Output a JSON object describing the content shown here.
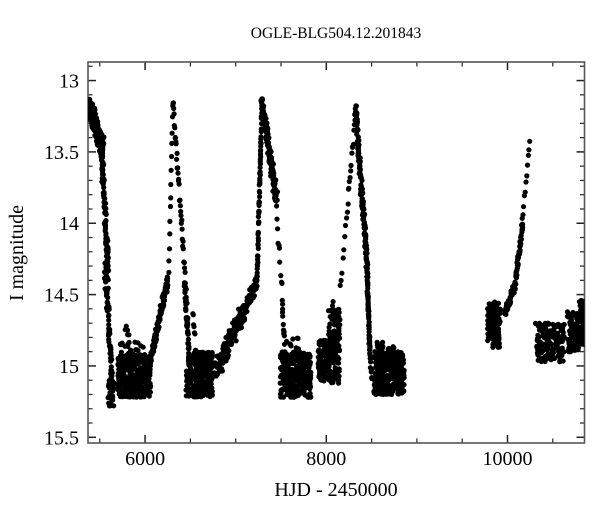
{
  "figure": {
    "title": "OGLE-BLG504.12.201843"
  },
  "chart_data": {
    "type": "scatter",
    "title": "OGLE-BLG504.12.201843",
    "xlabel": "HJD - 2450000",
    "ylabel": "I magnitude",
    "xlim": [
      5370,
      10850
    ],
    "ylim": [
      12.87,
      15.54
    ],
    "y_axis_inverted_magnitude": true,
    "x_major_ticks": [
      6000,
      8000,
      10000
    ],
    "x_minor_step": 500,
    "y_major_ticks": [
      13,
      13.5,
      14,
      14.5,
      15,
      15.5
    ],
    "y_minor_step": 0.1,
    "grid": false,
    "legend": null,
    "background": "#ffffff",
    "axis_color": "#555555",
    "tick_color": "#222222",
    "text_color": "#000000",
    "marker": {
      "shape": "circle",
      "radius_px": 2.6,
      "color": "#000000"
    },
    "seasonal_gap": [
      8860,
      9770
    ],
    "outburst_peaks": [
      {
        "hjd": 5400,
        "mag": 13.17
      },
      {
        "hjd": 6310,
        "mag": 13.14
      },
      {
        "hjd": 7290,
        "mag": 13.15
      },
      {
        "hjd": 8330,
        "mag": 13.2
      },
      {
        "hjd": 10240,
        "mag": 13.43,
        "note": "partial rise only"
      }
    ],
    "quiescence_mag_range": [
      14.9,
      15.22
    ],
    "segments": [
      {
        "name": "outburst1-plateau-decline",
        "type": "line",
        "t": [
          5382,
          5535
        ],
        "m": [
          13.18,
          13.48
        ],
        "n": 260,
        "jt": 14,
        "jm": 0.1
      },
      {
        "name": "outburst1-mid-decline",
        "type": "line",
        "t": [
          5520,
          5595
        ],
        "m": [
          13.48,
          14.35
        ],
        "n": 95,
        "jt": 10,
        "jm": 0.12
      },
      {
        "name": "outburst1-fast-decline",
        "type": "line",
        "t": [
          5560,
          5645
        ],
        "m": [
          14.3,
          15.2
        ],
        "n": 90,
        "jt": 12,
        "jm": 0.1
      },
      {
        "name": "outburst1-tail",
        "type": "box",
        "t": [
          5590,
          5655
        ],
        "m": [
          15.08,
          15.3
        ],
        "n": 25
      },
      {
        "name": "quiescence1",
        "type": "box",
        "t": [
          5700,
          6060
        ],
        "m": [
          14.92,
          15.22
        ],
        "n": 380
      },
      {
        "name": "quiescence1-upper-fringe",
        "type": "box",
        "t": [
          5720,
          5985
        ],
        "m": [
          14.82,
          14.95
        ],
        "n": 28
      },
      {
        "name": "quiescence1-outliers",
        "type": "box",
        "t": [
          5755,
          5825
        ],
        "m": [
          14.72,
          14.82
        ],
        "n": 5
      },
      {
        "name": "rise2-slow",
        "type": "line",
        "t": [
          6060,
          6250
        ],
        "m": [
          14.95,
          14.4
        ],
        "n": 140,
        "jt": 8,
        "jm": 0.06
      },
      {
        "name": "rise2-steep-sparse",
        "type": "line",
        "t": [
          6262,
          6306
        ],
        "m": [
          14.35,
          13.17
        ],
        "n": 14,
        "jt": 3,
        "jm": 0.04
      },
      {
        "name": "peak2-decline-dotted",
        "type": "line",
        "t": [
          6308,
          6440
        ],
        "m": [
          13.14,
          14.35
        ],
        "n": 34,
        "jt": 3,
        "jm": 0.05
      },
      {
        "name": "decline2-lower",
        "type": "line",
        "t": [
          6438,
          6500
        ],
        "m": [
          14.4,
          15.1
        ],
        "n": 70,
        "jt": 8,
        "jm": 0.1
      },
      {
        "name": "decline2-bottom",
        "type": "box",
        "t": [
          6448,
          6508
        ],
        "m": [
          15.0,
          15.22
        ],
        "n": 25
      },
      {
        "name": "quiescence2",
        "type": "box",
        "t": [
          6528,
          6745
        ],
        "m": [
          14.9,
          15.22
        ],
        "n": 280
      },
      {
        "name": "quiescence2-upper-left",
        "type": "line",
        "t": [
          6528,
          6558
        ],
        "m": [
          14.62,
          14.9
        ],
        "n": 8,
        "jt": 4,
        "jm": 0.05
      },
      {
        "name": "rise3-very-slow",
        "type": "line",
        "t": [
          6770,
          7090
        ],
        "m": [
          15.05,
          14.62
        ],
        "n": 115,
        "jt": 15,
        "jm": 0.1
      },
      {
        "name": "rise3-mid",
        "type": "line",
        "t": [
          7090,
          7232
        ],
        "m": [
          14.62,
          14.42
        ],
        "n": 60,
        "jt": 10,
        "jm": 0.07
      },
      {
        "name": "rise3-steep-dense",
        "type": "line",
        "t": [
          7235,
          7290
        ],
        "m": [
          14.4,
          13.16
        ],
        "n": 70,
        "jt": 4,
        "jm": 0.05
      },
      {
        "name": "peak3-decline-bulge",
        "type": "line",
        "t": [
          7292,
          7452
        ],
        "m": [
          13.15,
          13.85
        ],
        "n": 175,
        "jt": 18,
        "jm": 0.08
      },
      {
        "name": "decline3-sparse",
        "type": "line",
        "t": [
          7452,
          7520
        ],
        "m": [
          13.9,
          14.58
        ],
        "n": 12,
        "jt": 5,
        "jm": 0.06
      },
      {
        "name": "decline3-bottom",
        "type": "line",
        "t": [
          7515,
          7548
        ],
        "m": [
          14.6,
          14.95
        ],
        "n": 12,
        "jt": 4,
        "jm": 0.06
      },
      {
        "name": "quiescence3",
        "type": "box",
        "t": [
          7490,
          7830
        ],
        "m": [
          14.9,
          15.22
        ],
        "n": 320
      },
      {
        "name": "quiescence3-upper-fringe",
        "type": "box",
        "t": [
          7560,
          7705
        ],
        "m": [
          14.8,
          14.92
        ],
        "n": 14
      },
      {
        "name": "pre-outburst4-left",
        "type": "box",
        "t": [
          7910,
          8032
        ],
        "m": [
          14.82,
          15.12
        ],
        "n": 115
      },
      {
        "name": "pre-outburst4-right",
        "type": "box",
        "t": [
          8022,
          8150
        ],
        "m": [
          14.6,
          15.12
        ],
        "n": 135
      },
      {
        "name": "pre-outburst4-outlier",
        "type": "box",
        "t": [
          8060,
          8078
        ],
        "m": [
          14.53,
          14.58
        ],
        "n": 2
      },
      {
        "name": "rise4-sparse-lower",
        "type": "line",
        "t": [
          8155,
          8242
        ],
        "m": [
          14.45,
          13.85
        ],
        "n": 10,
        "jt": 4,
        "jm": 0.05
      },
      {
        "name": "rise4-sparse-upper",
        "type": "line",
        "t": [
          8245,
          8322
        ],
        "m": [
          13.8,
          13.24
        ],
        "n": 14,
        "jt": 4,
        "jm": 0.05
      },
      {
        "name": "peak4-decline-dense",
        "type": "line",
        "t": [
          8325,
          8450
        ],
        "m": [
          13.2,
          14.3
        ],
        "n": 150,
        "jt": 14,
        "jm": 0.07
      },
      {
        "name": "decline4-steep",
        "type": "line",
        "t": [
          8448,
          8482
        ],
        "m": [
          14.3,
          14.9
        ],
        "n": 70,
        "jt": 6,
        "jm": 0.08
      },
      {
        "name": "decline4-tail",
        "type": "line",
        "t": [
          8480,
          8502
        ],
        "m": [
          14.9,
          15.1
        ],
        "n": 10,
        "jt": 5,
        "jm": 0.05
      },
      {
        "name": "quiescence4",
        "type": "box",
        "t": [
          8518,
          8860
        ],
        "m": [
          14.9,
          15.2
        ],
        "n": 340
      },
      {
        "name": "quiescence4-upper-fringe",
        "type": "box",
        "t": [
          8560,
          8765
        ],
        "m": [
          14.83,
          14.92
        ],
        "n": 22
      },
      {
        "name": "season-cluster5",
        "type": "box",
        "t": [
          9780,
          9920
        ],
        "m": [
          14.55,
          14.87
        ],
        "n": 110
      },
      {
        "name": "rise5-first-point",
        "type": "box",
        "t": [
          9965,
          9978
        ],
        "m": [
          14.55,
          14.62
        ],
        "n": 2
      },
      {
        "name": "rise5-slow-dense",
        "type": "line",
        "t": [
          9978,
          10090
        ],
        "m": [
          14.62,
          14.42
        ],
        "n": 55,
        "jt": 8,
        "jm": 0.05
      },
      {
        "name": "rise5-steepening",
        "type": "line",
        "t": [
          10090,
          10170
        ],
        "m": [
          14.4,
          14.0
        ],
        "n": 45,
        "jt": 5,
        "jm": 0.05
      },
      {
        "name": "rise5-sparse-top",
        "type": "line",
        "t": [
          10162,
          10246
        ],
        "m": [
          13.98,
          13.43
        ],
        "n": 11,
        "jt": 3,
        "jm": 0.03
      },
      {
        "name": "quiescence5",
        "type": "box",
        "t": [
          10320,
          10630
        ],
        "m": [
          14.7,
          14.97
        ],
        "n": 150
      },
      {
        "name": "quiescence5-left-dot",
        "type": "box",
        "t": [
          10305,
          10318
        ],
        "m": [
          14.68,
          14.72
        ],
        "n": 1
      },
      {
        "name": "final-cluster-left",
        "type": "box",
        "t": [
          10660,
          10792
        ],
        "m": [
          14.62,
          14.9
        ],
        "n": 90
      },
      {
        "name": "final-cluster-right",
        "type": "box",
        "t": [
          10792,
          10850
        ],
        "m": [
          14.54,
          14.86
        ],
        "n": 70
      }
    ]
  }
}
